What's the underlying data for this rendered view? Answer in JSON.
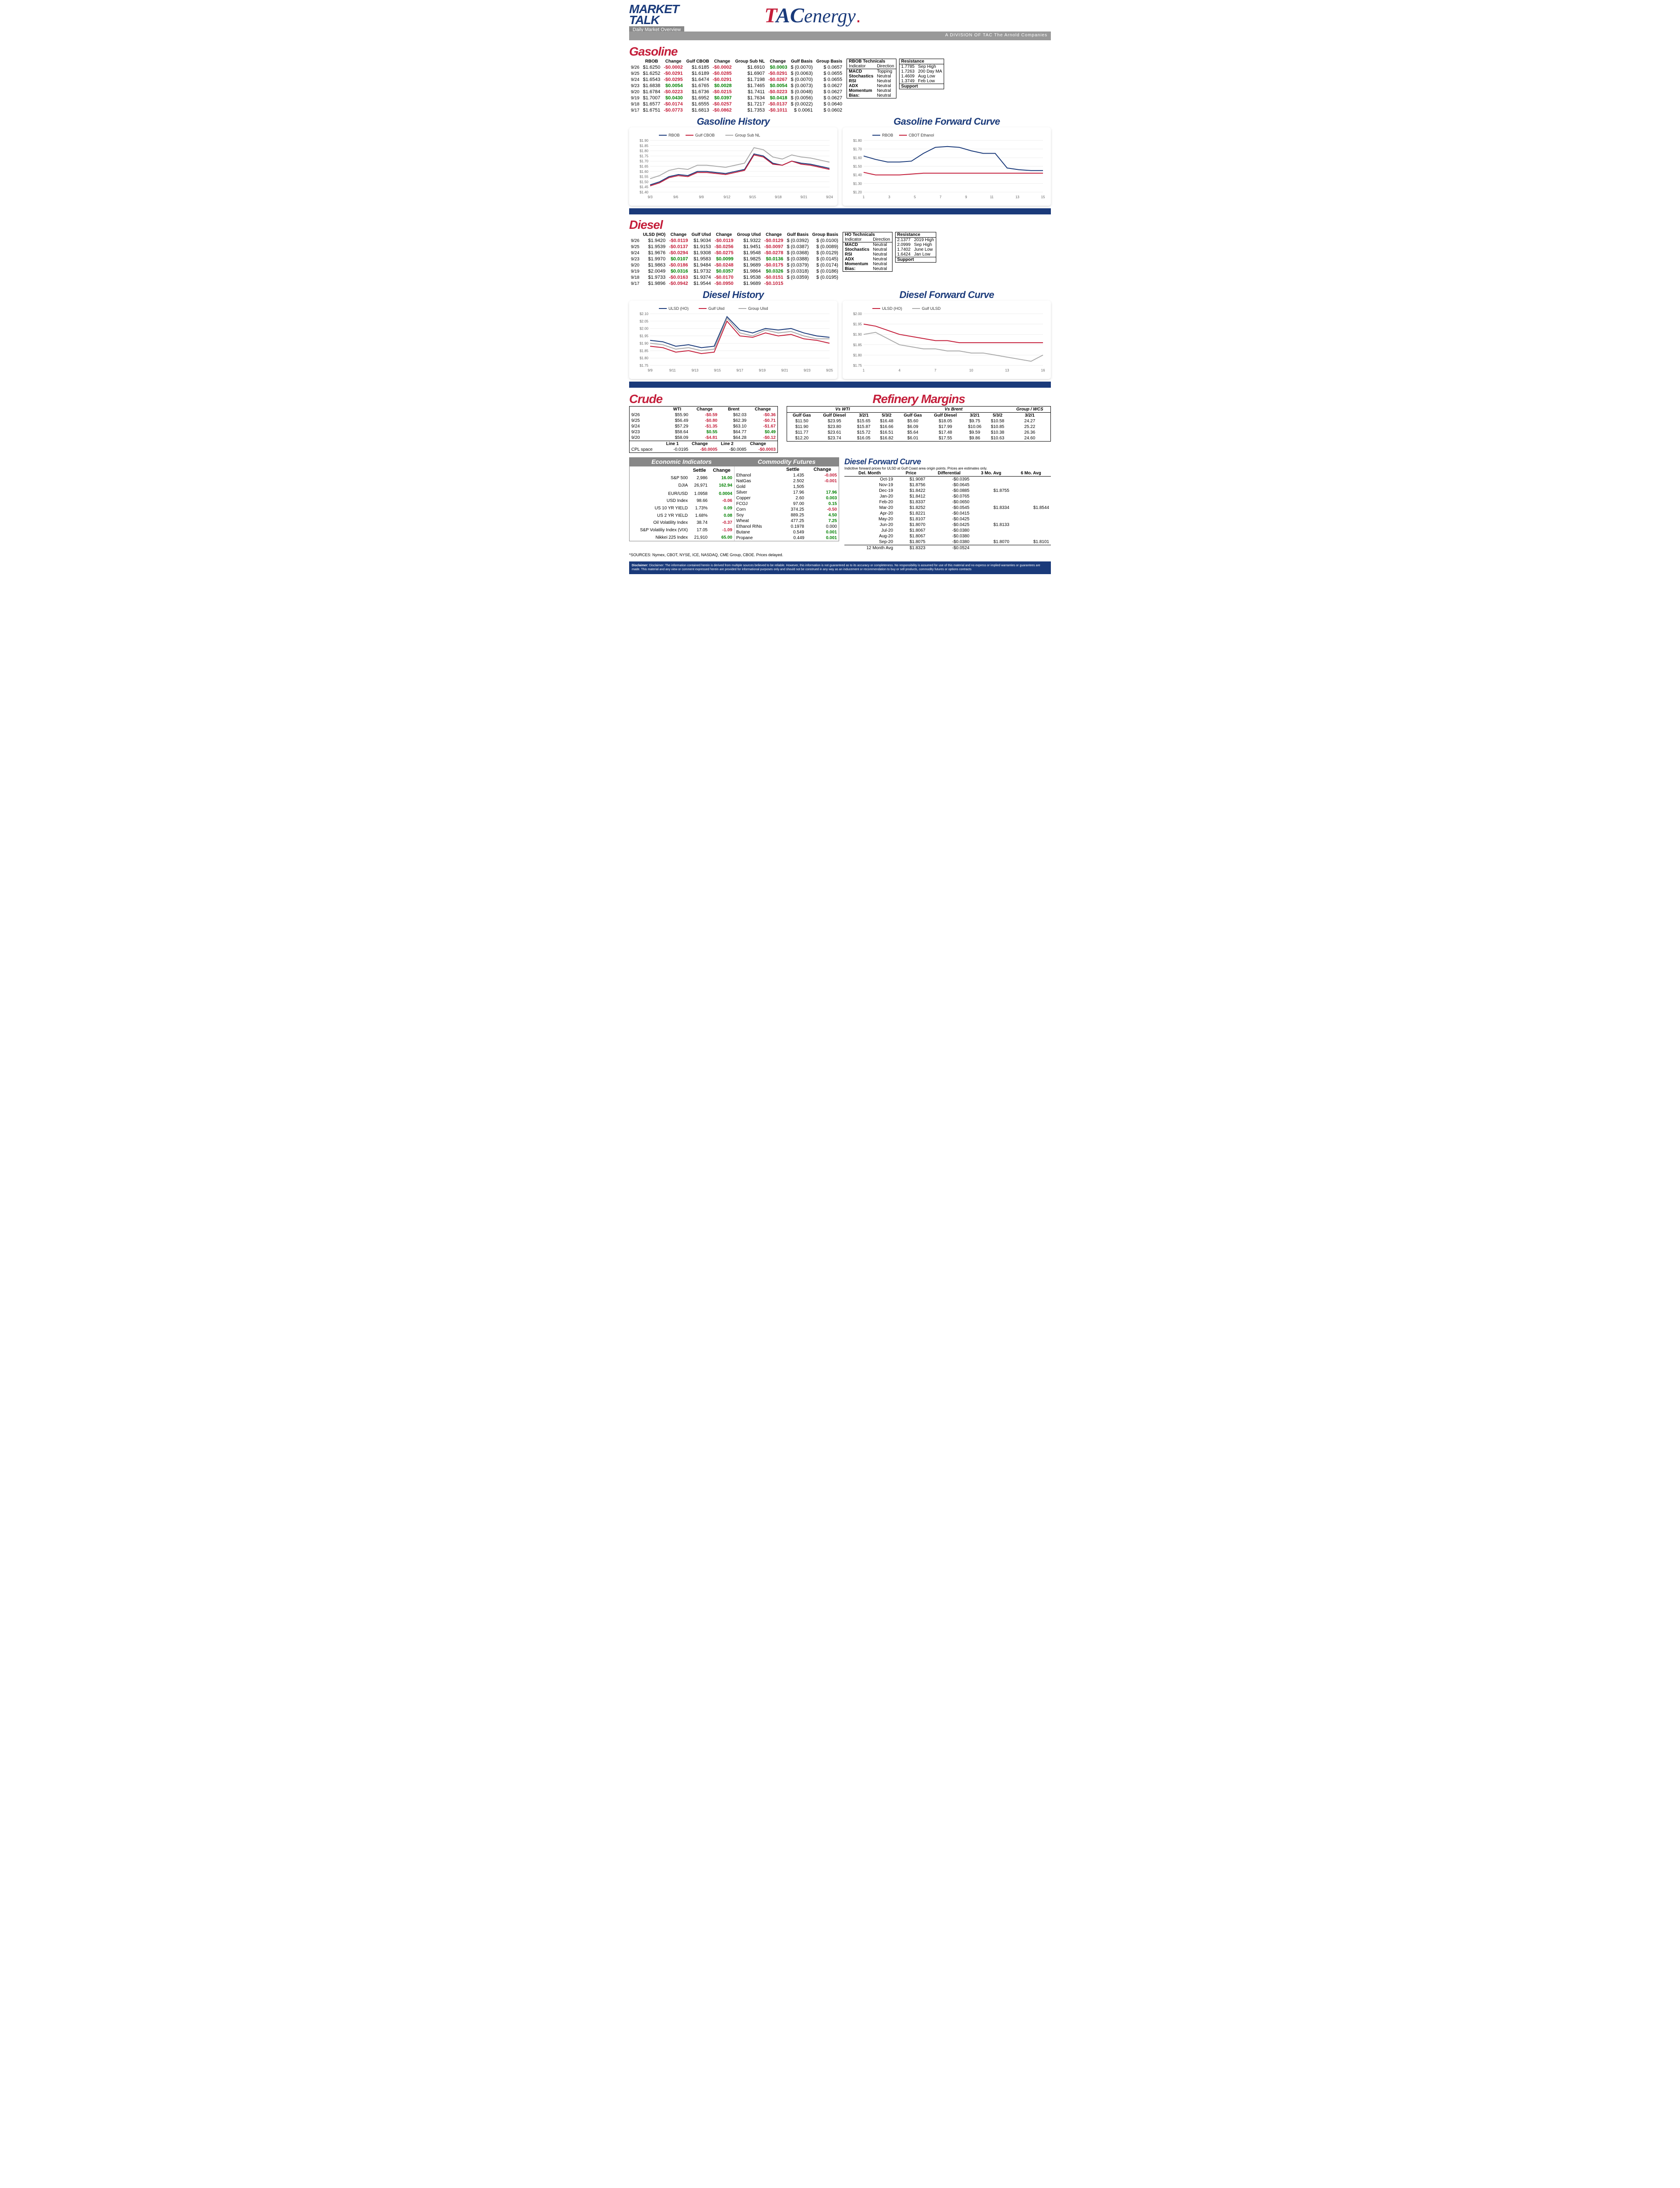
{
  "header": {
    "mt_line1": "MARKET",
    "mt_line2": "TALK",
    "mt_sub": "Daily Market Overview",
    "tac_division": "A DIVISION OF TAC The Arnold Companies"
  },
  "gasoline": {
    "title": "Gasoline",
    "columns": [
      "RBOB",
      "Change",
      "Gulf CBOB",
      "Change",
      "Group Sub NL",
      "Change",
      "Gulf Basis",
      "Group Basis"
    ],
    "rows": [
      {
        "date": "9/26",
        "rbob": "$1.6250",
        "rbob_ch": "-$0.0002",
        "cbob": "$1.6185",
        "cbob_ch": "-$0.0002",
        "gsnl": "$1.6910",
        "gsnl_ch": "$0.0003",
        "gulf_basis": "$ (0.0070)",
        "group_basis": "$    0.0657"
      },
      {
        "date": "9/25",
        "rbob": "$1.6252",
        "rbob_ch": "-$0.0291",
        "cbob": "$1.6189",
        "cbob_ch": "-$0.0285",
        "gsnl": "$1.6907",
        "gsnl_ch": "-$0.0291",
        "gulf_basis": "$ (0.0063)",
        "group_basis": "$    0.0655"
      },
      {
        "date": "9/24",
        "rbob": "$1.6543",
        "rbob_ch": "-$0.0295",
        "cbob": "$1.6474",
        "cbob_ch": "-$0.0291",
        "gsnl": "$1.7198",
        "gsnl_ch": "-$0.0267",
        "gulf_basis": "$ (0.0070)",
        "group_basis": "$    0.0655"
      },
      {
        "date": "9/23",
        "rbob": "$1.6838",
        "rbob_ch": "$0.0054",
        "cbob": "$1.6765",
        "cbob_ch": "$0.0028",
        "gsnl": "$1.7465",
        "gsnl_ch": "$0.0054",
        "gulf_basis": "$ (0.0073)",
        "group_basis": "$    0.0627"
      },
      {
        "date": "9/20",
        "rbob": "$1.6784",
        "rbob_ch": "-$0.0223",
        "cbob": "$1.6736",
        "cbob_ch": "-$0.0215",
        "gsnl": "$1.7411",
        "gsnl_ch": "-$0.0223",
        "gulf_basis": "$ (0.0048)",
        "group_basis": "$    0.0627"
      },
      {
        "date": "9/19",
        "rbob": "$1.7007",
        "rbob_ch": "$0.0430",
        "cbob": "$1.6952",
        "cbob_ch": "$0.0397",
        "gsnl": "$1.7634",
        "gsnl_ch": "$0.0418",
        "gulf_basis": "$ (0.0056)",
        "group_basis": "$    0.0627"
      },
      {
        "date": "9/18",
        "rbob": "$1.6577",
        "rbob_ch": "-$0.0174",
        "cbob": "$1.6555",
        "cbob_ch": "-$0.0257",
        "gsnl": "$1.7217",
        "gsnl_ch": "-$0.0137",
        "gulf_basis": "$ (0.0022)",
        "group_basis": "$    0.0640"
      },
      {
        "date": "9/17",
        "rbob": "$1.6751",
        "rbob_ch": "-$0.0773",
        "cbob": "$1.6813",
        "cbob_ch": "-$0.0862",
        "gsnl": "$1.7353",
        "gsnl_ch": "-$0.1011",
        "gulf_basis": "$  0.0061",
        "group_basis": "$    0.0602"
      }
    ],
    "technicals": {
      "title": "RBOB Technicals",
      "hdr1": "Indicator",
      "hdr2": "Direction",
      "rows": [
        [
          "MACD",
          "Topping"
        ],
        [
          "Stochastics",
          "Neutral"
        ],
        [
          "RSI",
          "Neutral"
        ],
        [
          "ADX",
          "Neutral"
        ],
        [
          "Momentum",
          "Neutral"
        ],
        [
          "Bias:",
          "Neutral"
        ]
      ]
    },
    "resistance": {
      "title": "Resistance",
      "support": "Support",
      "rows": [
        [
          "1.7785",
          "Sep High"
        ],
        [
          "1.7263",
          "200 Day MA"
        ],
        [
          "1.4609",
          "Aug Low"
        ],
        [
          "1.3749",
          "Feb Low"
        ]
      ]
    }
  },
  "gas_history_chart": {
    "title": "Gasoline History",
    "y_min": 1.4,
    "y_max": 1.9,
    "y_step": 0.05,
    "y_fmt": "$",
    "x_labels": [
      "9/3",
      "9/6",
      "9/9",
      "9/12",
      "9/15",
      "9/18",
      "9/21",
      "9/24"
    ],
    "series": [
      {
        "name": "RBOB",
        "color": "#1a3a7a",
        "y": [
          1.47,
          1.5,
          1.55,
          1.57,
          1.56,
          1.6,
          1.6,
          1.59,
          1.58,
          1.6,
          1.62,
          1.77,
          1.75,
          1.68,
          1.66,
          1.7,
          1.68,
          1.67,
          1.65,
          1.63
        ]
      },
      {
        "name": "Gulf CBOB",
        "color": "#c41e3a",
        "y": [
          1.46,
          1.49,
          1.54,
          1.56,
          1.55,
          1.59,
          1.59,
          1.58,
          1.57,
          1.59,
          1.61,
          1.76,
          1.74,
          1.67,
          1.66,
          1.7,
          1.67,
          1.66,
          1.64,
          1.62
        ]
      },
      {
        "name": "Group Sub NL",
        "color": "#aaaaaa",
        "y": [
          1.53,
          1.56,
          1.61,
          1.63,
          1.62,
          1.66,
          1.66,
          1.65,
          1.64,
          1.66,
          1.68,
          1.83,
          1.81,
          1.74,
          1.72,
          1.76,
          1.74,
          1.73,
          1.71,
          1.69
        ]
      }
    ]
  },
  "gas_forward_chart": {
    "title": "Gasoline Forward Curve",
    "y_min": 1.2,
    "y_max": 1.8,
    "y_step": 0.1,
    "y_fmt": "$",
    "x_labels": [
      "1",
      "3",
      "5",
      "7",
      "9",
      "11",
      "13",
      "15"
    ],
    "series": [
      {
        "name": "RBOB",
        "color": "#1a3a7a",
        "y": [
          1.62,
          1.58,
          1.55,
          1.55,
          1.56,
          1.65,
          1.72,
          1.73,
          1.72,
          1.68,
          1.65,
          1.65,
          1.48,
          1.46,
          1.45,
          1.45
        ]
      },
      {
        "name": "CBOT Ethanol",
        "color": "#c41e3a",
        "y": [
          1.43,
          1.4,
          1.4,
          1.4,
          1.41,
          1.42,
          1.42,
          1.42,
          1.42,
          1.42,
          1.42,
          1.42,
          1.42,
          1.42,
          1.42,
          1.42
        ]
      }
    ]
  },
  "diesel": {
    "title": "Diesel",
    "columns": [
      "ULSD (HO)",
      "Change",
      "Gulf Ulsd",
      "Change",
      "Group Ulsd",
      "Change",
      "Gulf Basis",
      "Group Basis"
    ],
    "rows": [
      {
        "date": "9/26",
        "c1": "$1.9420",
        "ch1": "-$0.0119",
        "c2": "$1.9034",
        "ch2": "-$0.0119",
        "c3": "$1.9322",
        "ch3": "-$0.0129",
        "gb": "$ (0.0392)",
        "grb": "$   (0.0100)"
      },
      {
        "date": "9/25",
        "c1": "$1.9539",
        "ch1": "-$0.0137",
        "c2": "$1.9153",
        "ch2": "-$0.0256",
        "c3": "$1.9451",
        "ch3": "-$0.0097",
        "gb": "$ (0.0387)",
        "grb": "$   (0.0089)"
      },
      {
        "date": "9/24",
        "c1": "$1.9676",
        "ch1": "-$0.0294",
        "c2": "$1.9308",
        "ch2": "-$0.0275",
        "c3": "$1.9548",
        "ch3": "-$0.0278",
        "gb": "$ (0.0368)",
        "grb": "$   (0.0129)"
      },
      {
        "date": "9/23",
        "c1": "$1.9970",
        "ch1": "$0.0107",
        "c2": "$1.9583",
        "ch2": "$0.0099",
        "c3": "$1.9825",
        "ch3": "$0.0136",
        "gb": "$ (0.0388)",
        "grb": "$   (0.0145)"
      },
      {
        "date": "9/20",
        "c1": "$1.9863",
        "ch1": "-$0.0186",
        "c2": "$1.9484",
        "ch2": "-$0.0248",
        "c3": "$1.9689",
        "ch3": "-$0.0175",
        "gb": "$ (0.0379)",
        "grb": "$   (0.0174)"
      },
      {
        "date": "9/19",
        "c1": "$2.0049",
        "ch1": "$0.0316",
        "c2": "$1.9732",
        "ch2": "$0.0357",
        "c3": "$1.9864",
        "ch3": "$0.0326",
        "gb": "$ (0.0318)",
        "grb": "$   (0.0186)"
      },
      {
        "date": "9/18",
        "c1": "$1.9733",
        "ch1": "-$0.0163",
        "c2": "$1.9374",
        "ch2": "-$0.0170",
        "c3": "$1.9538",
        "ch3": "-$0.0151",
        "gb": "$ (0.0359)",
        "grb": "$   (0.0195)"
      },
      {
        "date": "9/17",
        "c1": "$1.9896",
        "ch1": "-$0.0942",
        "c2": "$1.9544",
        "ch2": "-$0.0950",
        "c3": "$1.9689",
        "ch3": "-$0.1015",
        "gb": "",
        "grb": ""
      }
    ],
    "technicals": {
      "title": "HO Technicals",
      "hdr1": "Indicator",
      "hdr2": "Direction",
      "rows": [
        [
          "MACD",
          "Neutral"
        ],
        [
          "Stochastics",
          "Neutral"
        ],
        [
          "RSI",
          "Neutral"
        ],
        [
          "ADX",
          "Neutral"
        ],
        [
          "Momentum",
          "Neutral"
        ],
        [
          "Bias:",
          "Neutral"
        ]
      ]
    },
    "resistance": {
      "title": "Resistance",
      "support": "Support",
      "rows": [
        [
          "2.1377",
          "2019 High"
        ],
        [
          "2.0999",
          "Sep High"
        ],
        [
          "1.7402",
          "June Low"
        ],
        [
          "1.6424",
          "Jan Low"
        ]
      ]
    }
  },
  "diesel_history_chart": {
    "title": "Diesel History",
    "y_min": 1.75,
    "y_max": 2.1,
    "y_step": 0.05,
    "y_fmt": "$",
    "x_labels": [
      "9/9",
      "9/11",
      "9/13",
      "9/15",
      "9/17",
      "9/19",
      "9/21",
      "9/23",
      "9/25"
    ],
    "series": [
      {
        "name": "ULSD (HO)",
        "color": "#1a3a7a",
        "y": [
          1.92,
          1.91,
          1.88,
          1.89,
          1.87,
          1.88,
          2.08,
          1.99,
          1.97,
          2.0,
          1.99,
          2.0,
          1.97,
          1.95,
          1.94
        ]
      },
      {
        "name": "Gulf Ulsd",
        "color": "#c41e3a",
        "y": [
          1.88,
          1.87,
          1.84,
          1.85,
          1.83,
          1.84,
          2.05,
          1.95,
          1.94,
          1.97,
          1.95,
          1.96,
          1.93,
          1.92,
          1.9
        ]
      },
      {
        "name": "Group Ulsd",
        "color": "#aaaaaa",
        "y": [
          1.9,
          1.89,
          1.86,
          1.87,
          1.85,
          1.86,
          2.07,
          1.97,
          1.95,
          1.99,
          1.97,
          1.98,
          1.95,
          1.93,
          1.93
        ]
      }
    ]
  },
  "diesel_forward_chart": {
    "title": "Diesel Forward Curve",
    "y_min": 1.75,
    "y_max": 2.0,
    "y_step": 0.05,
    "y_fmt": "$",
    "x_labels": [
      "1",
      "4",
      "7",
      "10",
      "13",
      "16"
    ],
    "series": [
      {
        "name": "ULSD (HO)",
        "color": "#c41e3a",
        "y": [
          1.95,
          1.94,
          1.92,
          1.9,
          1.89,
          1.88,
          1.87,
          1.87,
          1.86,
          1.86,
          1.86,
          1.86,
          1.86,
          1.86,
          1.86,
          1.86
        ]
      },
      {
        "name": "Gulf ULSD",
        "color": "#aaaaaa",
        "y": [
          1.9,
          1.91,
          1.88,
          1.85,
          1.84,
          1.83,
          1.83,
          1.82,
          1.82,
          1.81,
          1.81,
          1.8,
          1.79,
          1.78,
          1.77,
          1.8
        ]
      }
    ]
  },
  "crude": {
    "title": "Crude",
    "columns": [
      "WTI",
      "Change",
      "Brent",
      "Change"
    ],
    "rows": [
      {
        "date": "9/26",
        "wti": "$55.90",
        "wch": "-$0.59",
        "br": "$62.03",
        "bch": "-$0.36"
      },
      {
        "date": "9/25",
        "wti": "$56.49",
        "wch": "-$0.80",
        "br": "$62.39",
        "bch": "-$0.71"
      },
      {
        "date": "9/24",
        "wti": "$57.29",
        "wch": "-$1.35",
        "br": "$63.10",
        "bch": "-$1.67"
      },
      {
        "date": "9/23",
        "wti": "$58.64",
        "wch": "$0.55",
        "br": "$64.77",
        "bch": "$0.49"
      },
      {
        "date": "9/20",
        "wti": "$58.09",
        "wch": "-$4.81",
        "br": "$64.28",
        "bch": "-$0.12"
      }
    ],
    "cpl": {
      "label": "CPL space",
      "l1": "Line 1",
      "l1v": "-0.0195",
      "l1c": "-$0.0005",
      "l2": "Line 2",
      "l2v": "-$0.0085",
      "l2c": "-$0.0003",
      "ch": "Change"
    }
  },
  "refinery": {
    "title": "Refinery Margins",
    "wti": "Vs WTI",
    "brent": "Vs Brent",
    "gwcs": "Group / WCS",
    "cols": [
      "Gulf Gas",
      "Gulf Diesel",
      "3/2/1",
      "5/3/2",
      "Gulf Gas",
      "Gulf Diesel",
      "3/2/1",
      "5/3/2",
      "3/2/1"
    ],
    "rows": [
      [
        "$11.50",
        "$23.95",
        "$15.65",
        "$16.48",
        "$5.60",
        "$18.05",
        "$9.75",
        "$10.58",
        "24.27"
      ],
      [
        "$11.90",
        "$23.80",
        "$15.87",
        "$16.66",
        "$6.09",
        "$17.99",
        "$10.06",
        "$10.85",
        "25.22"
      ],
      [
        "$11.77",
        "$23.61",
        "$15.72",
        "$16.51",
        "$5.64",
        "$17.48",
        "$9.59",
        "$10.38",
        "26.36"
      ],
      [
        "$12.20",
        "$23.74",
        "$16.05",
        "$16.82",
        "$6.01",
        "$17.55",
        "$9.86",
        "$10.63",
        "24.60"
      ]
    ]
  },
  "econ": {
    "title": "Economic Indicators",
    "hdr_settle": "Settle",
    "hdr_change": "Change",
    "rows": [
      [
        "S&P 500",
        "2,986",
        "16.00",
        "pos"
      ],
      [
        "DJIA",
        "26,971",
        "162.94",
        "pos"
      ],
      [
        "",
        "",
        "",
        ""
      ],
      [
        "EUR/USD",
        "1.0958",
        "0.0004",
        "pos"
      ],
      [
        "USD Index",
        "98.66",
        "-0.06",
        "neg"
      ],
      [
        "US 10 YR YIELD",
        "1.73%",
        "0.09",
        "pos"
      ],
      [
        "US 2 YR YIELD",
        "1.68%",
        "0.08",
        "pos"
      ],
      [
        "Oil Volatility Index",
        "38.74",
        "-0.37",
        "neg"
      ],
      [
        "S&P Volatiliy Index (VIX)",
        "17.05",
        "-1.09",
        "neg"
      ],
      [
        "Nikkei 225 Index",
        "21,910",
        "65.00",
        "pos"
      ]
    ]
  },
  "commod": {
    "title": "Commodity Futures",
    "rows": [
      [
        "Ethanol",
        "1.435",
        "-0.005",
        "neg"
      ],
      [
        "NatGas",
        "2.502",
        "-0.001",
        "neg"
      ],
      [
        "Gold",
        "1,505",
        "",
        ""
      ],
      [
        "Silver",
        "17.96",
        "17.96",
        "pos"
      ],
      [
        "Copper",
        "2.60",
        "0.003",
        "pos"
      ],
      [
        "FCOJ",
        "97.00",
        "0.15",
        "pos"
      ],
      [
        "Corn",
        "374.25",
        "-0.50",
        "neg"
      ],
      [
        "Soy",
        "889.25",
        "4.50",
        "pos"
      ],
      [
        "Wheat",
        "477.25",
        "7.25",
        "pos"
      ],
      [
        "Ethanol RINs",
        "0.1978",
        "0.000",
        ""
      ],
      [
        "Butane",
        "0.549",
        "0.001",
        "pos"
      ],
      [
        "Propane",
        "0.449",
        "0.001",
        "pos"
      ]
    ]
  },
  "dfc": {
    "title": "Diesel Forward Curve",
    "note": "Indicitive forward prices for ULSD at Gulf Coast area origin points.  Prices are estimates only.",
    "cols": [
      "Del. Month",
      "Price",
      "Differential",
      "3 Mo. Avg",
      "6 Mo. Avg"
    ],
    "rows": [
      [
        "Oct-19",
        "$1.9087",
        "-$0.0395",
        "",
        ""
      ],
      [
        "Nov-19",
        "$1.8756",
        "-$0.0645",
        "",
        ""
      ],
      [
        "Dec-19",
        "$1.8422",
        "-$0.0885",
        "$1.8755",
        ""
      ],
      [
        "Jan-20",
        "$1.8412",
        "-$0.0765",
        "",
        ""
      ],
      [
        "Feb-20",
        "$1.8337",
        "-$0.0650",
        "",
        ""
      ],
      [
        "Mar-20",
        "$1.8252",
        "-$0.0545",
        "$1.8334",
        "$1.8544"
      ],
      [
        "Apr-20",
        "$1.8221",
        "-$0.0415",
        "",
        ""
      ],
      [
        "May-20",
        "$1.8107",
        "-$0.0425",
        "",
        ""
      ],
      [
        "Jun-20",
        "$1.8070",
        "-$0.0425",
        "$1.8133",
        ""
      ],
      [
        "Jul-20",
        "$1.8067",
        "-$0.0380",
        "",
        ""
      ],
      [
        "Aug-20",
        "$1.8067",
        "-$0.0380",
        "",
        ""
      ],
      [
        "Sep-20",
        "$1.8075",
        "-$0.0380",
        "$1.8070",
        "$1.8101"
      ]
    ],
    "avg": [
      "12 Month Avg",
      "$1.8323",
      "-$0.0524",
      "",
      ""
    ]
  },
  "sources": "*SOURCES: Nymex, CBOT, NYSE, ICE, NASDAQ, CME Group, CBOE.   Prices delayed.",
  "disclaimer": "Disclaimer: The information contained herein is derived from multiple sources believed to be reliable.  However, this information is not guaranteed as to its accuracy or completeness. No responsibility is assumed for use of this material and no express or implied  warranties or guarantees are made. This material and any view or comment expressed herein are provided for informational purposes only and should not be construed in any way as an inducement or recommendation to buy or sell products, commodity futures or options contracts"
}
